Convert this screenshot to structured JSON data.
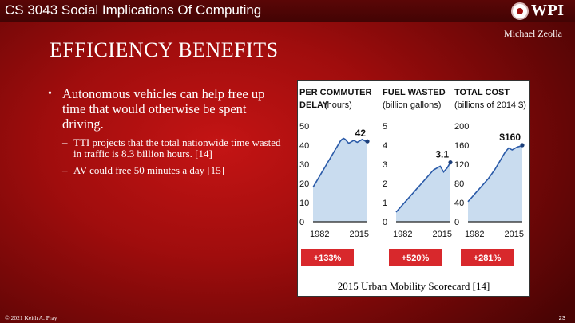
{
  "header": {
    "course_title": "CS 3043 Social Implications Of Computing",
    "logo_text": "WPI"
  },
  "author": "Michael Zeolla",
  "slide_title": "EFFICIENCY BENEFITS",
  "bullets": {
    "main": "Autonomous vehicles can help free up time that would otherwise be spent driving.",
    "subs": [
      "TTI projects that the total nationwide time wasted in traffic is 8.3 billion hours. [14]",
      "AV could free 50 minutes a day [15]"
    ]
  },
  "figure": {
    "caption": "2015 Urban Mobility Scorecard [14]",
    "accent_color": "#d8282c",
    "area_color": "#c9dcef",
    "line_color": "#2a5aa8"
  },
  "chart_data": [
    {
      "type": "area",
      "title_bold": "PER COMMUTER",
      "title_rest_bold": "DELAY",
      "title_unit": "(hours)",
      "x_ticks": [
        "1982",
        "2015"
      ],
      "y_ticks": [
        "50",
        "40",
        "30",
        "20",
        "10",
        "0"
      ],
      "ylim": [
        0,
        50
      ],
      "end_label": "42",
      "change": "+133%",
      "values": [
        18,
        19.5,
        21,
        22.5,
        24,
        25.5,
        27,
        28.5,
        30,
        31.5,
        33,
        34.5,
        36,
        37.5,
        39,
        40.5,
        42,
        43,
        43.5,
        43,
        42,
        41,
        41.5,
        42,
        42.5,
        42,
        41.5,
        42,
        42.5,
        43,
        42.5,
        42,
        42
      ]
    },
    {
      "type": "area",
      "title_bold": "FUEL WASTED",
      "title_unit": "(billion gallons)",
      "x_ticks": [
        "1982",
        "2015"
      ],
      "y_ticks": [
        "5",
        "4",
        "3",
        "2",
        "1",
        "0"
      ],
      "ylim": [
        0,
        5
      ],
      "end_label": "3.1",
      "change": "+520%",
      "values": [
        0.5,
        0.6,
        0.7,
        0.8,
        0.9,
        1,
        1.1,
        1.2,
        1.3,
        1.4,
        1.5,
        1.6,
        1.7,
        1.8,
        1.9,
        2,
        2.1,
        2.2,
        2.3,
        2.4,
        2.5,
        2.6,
        2.7,
        2.75,
        2.8,
        2.85,
        2.9,
        2.75,
        2.6,
        2.7,
        2.8,
        2.95,
        3.1
      ]
    },
    {
      "type": "area",
      "title_bold": "TOTAL COST",
      "title_unit": "(billions of 2014 $)",
      "x_ticks": [
        "1982",
        "2015"
      ],
      "y_ticks": [
        "200",
        "160",
        "120",
        "80",
        "40",
        "0"
      ],
      "ylim": [
        0,
        200
      ],
      "end_label": "$160",
      "change": "+281%",
      "values": [
        42,
        46,
        50,
        54,
        58,
        62,
        66,
        70,
        74,
        78,
        82,
        86,
        90,
        95,
        100,
        105,
        110,
        116,
        122,
        128,
        134,
        140,
        146,
        150,
        154,
        152,
        150,
        152,
        154,
        156,
        157,
        158,
        160
      ]
    }
  ],
  "footer": {
    "copyright": "© 2021 Keith A. Pray",
    "page_number": "23"
  }
}
